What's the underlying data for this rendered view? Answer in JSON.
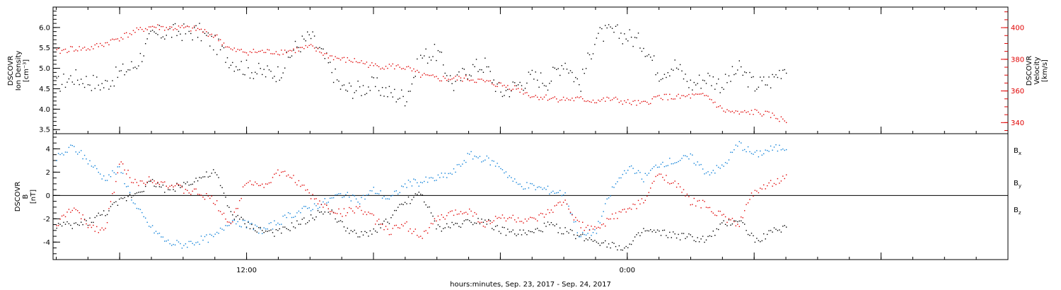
{
  "xlabel": "hours:minutes, Sep. 23, 2017 - Sep. 24, 2017",
  "x_ticks": [
    {
      "hour": 12,
      "label": "12:00"
    },
    {
      "hour": 24,
      "label": "0:00"
    }
  ],
  "x_range_hours": [
    5.9,
    36.0
  ],
  "colors": {
    "black": "#000000",
    "red": "#e00000",
    "blue": "#0a7fd8"
  },
  "chart_data": [
    {
      "type": "scatter",
      "panel": "plasma",
      "ylabel_left": [
        "DSCOVR",
        "Ion Density",
        "[cm⁻³]"
      ],
      "ylabel_right": [
        "DSCOVR",
        "Velocity",
        "[km/s]"
      ],
      "ylim_left": [
        3.4,
        6.5
      ],
      "ylim_right": [
        333,
        413
      ],
      "yticks_left": [
        "3.5",
        "4.0",
        "4.5",
        "5.0",
        "5.5",
        "6.0"
      ],
      "yticks_right": [
        "340",
        "360",
        "380",
        "400"
      ],
      "series": [
        {
          "name": "Ion Density",
          "axis": "left",
          "color": "#000000",
          "x": [
            6.0,
            6.5,
            7.0,
            7.5,
            8.0,
            8.5,
            9.0,
            9.5,
            10.0,
            10.5,
            11.0,
            11.5,
            12.0,
            12.5,
            13.0,
            13.5,
            14.0,
            14.5,
            15.0,
            15.5,
            16.0,
            16.5,
            17.0,
            17.5,
            18.0,
            18.5,
            19.0,
            19.5,
            20.0,
            20.5,
            21.0,
            21.5,
            22.0,
            22.5,
            23.0,
            23.5,
            24.0,
            24.5,
            25.0,
            25.5,
            26.0,
            26.5,
            27.0,
            27.5,
            28.0,
            28.5,
            29.0
          ],
          "values": [
            4.6,
            4.8,
            4.7,
            4.6,
            4.9,
            5.1,
            5.8,
            5.9,
            5.9,
            5.9,
            5.6,
            5.2,
            5.0,
            4.9,
            4.9,
            5.5,
            5.8,
            5.2,
            4.5,
            4.5,
            4.6,
            4.4,
            4.3,
            5.3,
            5.4,
            4.6,
            5.0,
            5.1,
            4.4,
            4.6,
            4.8,
            4.7,
            5.2,
            4.6,
            5.8,
            5.9,
            5.8,
            5.6,
            4.9,
            5.1,
            4.6,
            4.8,
            4.6,
            5.0,
            4.6,
            4.7,
            5.1
          ]
        },
        {
          "name": "Velocity",
          "axis": "right",
          "color": "#e00000",
          "x": [
            6.0,
            6.5,
            7.0,
            7.5,
            8.0,
            8.5,
            9.0,
            9.5,
            10.0,
            10.5,
            11.0,
            11.5,
            12.0,
            12.5,
            13.0,
            13.5,
            14.0,
            14.5,
            15.0,
            15.5,
            16.0,
            16.5,
            17.0,
            17.5,
            18.0,
            18.5,
            19.0,
            19.5,
            20.0,
            20.5,
            21.0,
            21.5,
            22.0,
            22.5,
            23.0,
            23.5,
            24.0,
            24.5,
            25.0,
            25.5,
            26.0,
            26.5,
            27.0,
            27.5,
            28.0,
            28.5,
            29.0
          ],
          "values": [
            385,
            387,
            387,
            390,
            394,
            398,
            401,
            400,
            400,
            399,
            395,
            386,
            385,
            385,
            385,
            386,
            388,
            383,
            380,
            379,
            376,
            376,
            375,
            370,
            368,
            368,
            368,
            366,
            364,
            362,
            357,
            356,
            355,
            355,
            354,
            355,
            353,
            352,
            357,
            356,
            357,
            357,
            348,
            346,
            347,
            345,
            341
          ]
        }
      ]
    },
    {
      "type": "scatter",
      "panel": "magnetic field",
      "ylabel": [
        "DSCOVR",
        "B",
        "[nT]"
      ],
      "ylim": [
        -5.5,
        5.3
      ],
      "yticks": [
        "-4",
        "-2",
        "0",
        "2",
        "4"
      ],
      "legend": [
        {
          "name": "B",
          "sub": "x",
          "color": "#000000"
        },
        {
          "name": "B",
          "sub": "y",
          "color": "#0a7fd8"
        },
        {
          "name": "B",
          "sub": "z",
          "color": "#e00000"
        }
      ],
      "series": [
        {
          "name": "Bx",
          "color": "#000000",
          "x": [
            6.0,
            6.5,
            7.0,
            7.5,
            8.0,
            8.5,
            9.0,
            9.5,
            10.0,
            10.5,
            11.0,
            11.5,
            12.0,
            12.5,
            13.0,
            13.5,
            14.0,
            14.5,
            15.0,
            15.5,
            16.0,
            16.5,
            17.0,
            17.5,
            18.0,
            18.5,
            19.0,
            19.5,
            20.0,
            20.5,
            21.0,
            21.5,
            22.0,
            22.5,
            23.0,
            23.5,
            24.0,
            24.5,
            25.0,
            25.5,
            26.0,
            26.5,
            27.0,
            27.5,
            28.0,
            28.5,
            29.0
          ],
          "values": [
            -2.5,
            -2.6,
            -2.2,
            -1.5,
            -0.5,
            0.3,
            1.2,
            0.5,
            1.0,
            1.5,
            2.0,
            -1.5,
            -2.5,
            -3.0,
            -3.2,
            -2.5,
            -2.0,
            -1.0,
            -2.5,
            -3.5,
            -3.0,
            -2.0,
            -0.5,
            0.2,
            -2.8,
            -2.5,
            -2.2,
            -2.0,
            -3.0,
            -3.2,
            -3.2,
            -2.5,
            -3.0,
            -3.5,
            -3.8,
            -4.2,
            -4.5,
            -3.0,
            -3.2,
            -3.4,
            -3.6,
            -3.8,
            -2.5,
            -2.0,
            -3.8,
            -3.2,
            -2.6
          ]
        },
        {
          "name": "By",
          "color": "#0a7fd8",
          "x": [
            6.0,
            6.5,
            7.0,
            7.5,
            8.0,
            8.5,
            9.0,
            9.5,
            10.0,
            10.5,
            11.0,
            11.5,
            12.0,
            12.5,
            13.0,
            13.5,
            14.0,
            14.5,
            15.0,
            15.5,
            16.0,
            16.5,
            17.0,
            17.5,
            18.0,
            18.5,
            19.0,
            19.5,
            20.0,
            20.5,
            21.0,
            21.5,
            22.0,
            22.5,
            23.0,
            23.5,
            24.0,
            24.5,
            25.0,
            25.5,
            26.0,
            26.5,
            27.0,
            27.5,
            28.0,
            28.5,
            29.0
          ],
          "values": [
            3.2,
            4.2,
            3.0,
            1.5,
            2.3,
            -1.0,
            -2.8,
            -4.0,
            -4.2,
            -3.8,
            -3.5,
            -2.0,
            -2.5,
            -3.0,
            -2.2,
            -1.5,
            -1.0,
            -0.5,
            0.2,
            -0.5,
            0.5,
            -0.3,
            1.0,
            1.2,
            1.5,
            2.0,
            3.5,
            3.2,
            2.5,
            1.0,
            0.8,
            0.5,
            0.2,
            -3.5,
            -3.0,
            0.5,
            2.5,
            1.5,
            2.8,
            3.0,
            3.3,
            2.0,
            2.5,
            4.5,
            3.5,
            4.0,
            4.2
          ]
        },
        {
          "name": "Bz",
          "color": "#e00000",
          "x": [
            6.0,
            6.5,
            7.0,
            7.5,
            8.0,
            8.5,
            9.0,
            9.5,
            10.0,
            10.5,
            11.0,
            11.5,
            12.0,
            12.5,
            13.0,
            13.5,
            14.0,
            14.5,
            15.0,
            15.5,
            16.0,
            16.5,
            17.0,
            17.5,
            18.0,
            18.5,
            19.0,
            19.5,
            20.0,
            20.5,
            21.0,
            21.5,
            22.0,
            22.5,
            23.0,
            23.5,
            24.0,
            24.5,
            25.0,
            25.5,
            26.0,
            26.5,
            27.0,
            27.5,
            28.0,
            28.5,
            29.0
          ],
          "values": [
            -2.5,
            -1.0,
            -2.5,
            -3.0,
            2.8,
            1.0,
            1.5,
            1.0,
            0.5,
            0.2,
            -0.5,
            -2.5,
            1.5,
            0.8,
            2.0,
            1.5,
            0.0,
            -1.0,
            -1.5,
            -1.0,
            -2.0,
            -3.0,
            -2.5,
            -3.5,
            -2.0,
            -1.5,
            -1.2,
            -2.5,
            -1.8,
            -2.0,
            -2.2,
            -1.5,
            -0.5,
            -2.5,
            -3.0,
            -1.8,
            -1.2,
            -0.5,
            2.0,
            1.0,
            -0.5,
            -0.8,
            -1.8,
            -2.5,
            0.5,
            1.0,
            1.5
          ]
        }
      ]
    }
  ]
}
